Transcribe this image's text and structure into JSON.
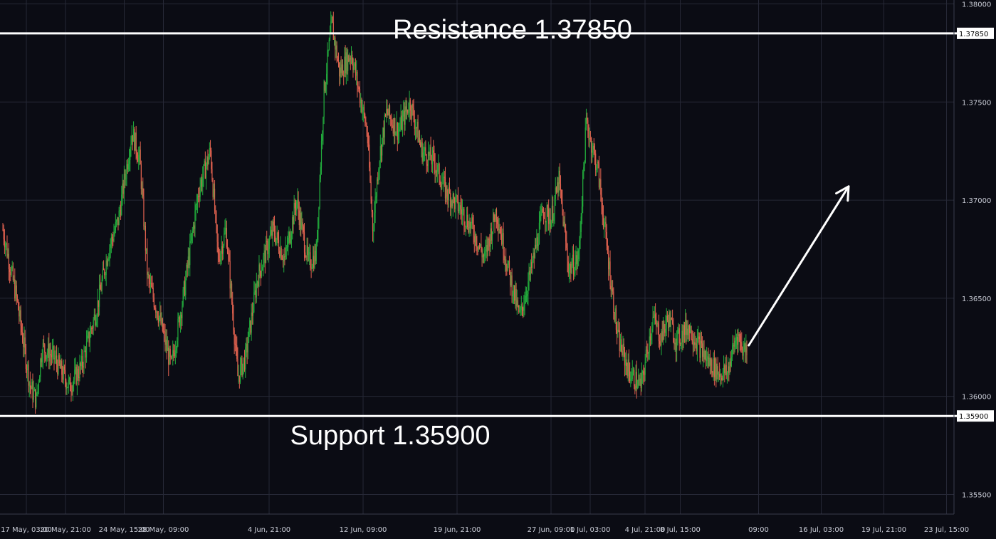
{
  "chart_data": {
    "type": "candlestick",
    "colors": {
      "background": "#0b0c14",
      "grid": "#262836",
      "up": "#22ab3c",
      "down": "#e0614f",
      "level_line": "#ffffff",
      "text": "#c9ccd6"
    },
    "y_axis": {
      "range": [
        1.354,
        1.3802
      ],
      "ticks": [
        "1.38000",
        "1.37500",
        "1.37000",
        "1.36500",
        "1.36000",
        "1.35500"
      ],
      "tick_values": [
        1.38,
        1.375,
        1.37,
        1.365,
        1.36,
        1.355
      ]
    },
    "x_axis": {
      "tick_labels": [
        "17 May, 03:00",
        "20 May, 21:00",
        "24 May, 15:00",
        "28 May, 09:00",
        "4 Jun, 21:00",
        "12 Jun, 09:00",
        "19 Jun, 21:00",
        "27 Jun, 09:00",
        "1 Jul, 03:00",
        "4 Jul, 21:00",
        "8 Jul, 15:00",
        "09:00",
        "16 Jul, 03:00",
        "19 Jul, 21:00",
        "23 Jul, 15:00"
      ],
      "tick_index": [
        0.6,
        1.6,
        3.1,
        4.1,
        6.8,
        9.2,
        11.6,
        14.0,
        15.0,
        16.4,
        17.3,
        19.3,
        20.9,
        22.5,
        24.1
      ]
    },
    "levels": [
      {
        "name": "Resistance",
        "value": 1.3785,
        "label": "Resistance 1.37850",
        "axis_label": "1.37850"
      },
      {
        "name": "Support",
        "value": 1.359,
        "label": "Support 1.35900",
        "axis_label": "1.35900"
      }
    ],
    "price_path": {
      "x_index": [
        0.0,
        0.35,
        0.7,
        0.85,
        1.0,
        1.3,
        1.7,
        2.0,
        2.4,
        2.7,
        2.95,
        3.3,
        3.5,
        3.7,
        4.0,
        4.3,
        4.6,
        5.0,
        5.3,
        5.5,
        5.7,
        6.0,
        6.2,
        6.5,
        6.9,
        7.2,
        7.5,
        7.8,
        8.0,
        8.2,
        8.4,
        8.6,
        8.9,
        9.1,
        9.3,
        9.45,
        9.6,
        9.8,
        10.1,
        10.4,
        10.7,
        11.0,
        11.3,
        11.7,
        12.0,
        12.3,
        12.6,
        12.9,
        13.2,
        13.5,
        13.8,
        14.0,
        14.2,
        14.45,
        14.7,
        14.9,
        15.2,
        15.4,
        15.7,
        16.0,
        16.3,
        16.6,
        16.8,
        17.0,
        17.2,
        17.5,
        17.8,
        18.0,
        18.3,
        18.5,
        18.75,
        18.9,
        19.0
      ],
      "close": [
        1.3685,
        1.365,
        1.3605,
        1.3598,
        1.3625,
        1.362,
        1.3605,
        1.3615,
        1.3645,
        1.3675,
        1.369,
        1.3735,
        1.372,
        1.366,
        1.364,
        1.3615,
        1.365,
        1.3705,
        1.3725,
        1.367,
        1.3685,
        1.361,
        1.362,
        1.366,
        1.3685,
        1.367,
        1.37,
        1.3668,
        1.3672,
        1.3755,
        1.379,
        1.3765,
        1.3775,
        1.3755,
        1.3735,
        1.3685,
        1.372,
        1.3745,
        1.3735,
        1.375,
        1.3725,
        1.372,
        1.3705,
        1.3695,
        1.3685,
        1.367,
        1.3695,
        1.3665,
        1.364,
        1.3665,
        1.3695,
        1.369,
        1.371,
        1.3665,
        1.367,
        1.374,
        1.3715,
        1.368,
        1.363,
        1.3612,
        1.3605,
        1.364,
        1.363,
        1.364,
        1.3628,
        1.3636,
        1.3625,
        1.3618,
        1.3612,
        1.3612,
        1.3632,
        1.3624,
        1.3625
      ]
    },
    "arrow": {
      "from": [
        19.05,
        1.3626
      ],
      "to": [
        21.6,
        1.3707
      ]
    }
  }
}
